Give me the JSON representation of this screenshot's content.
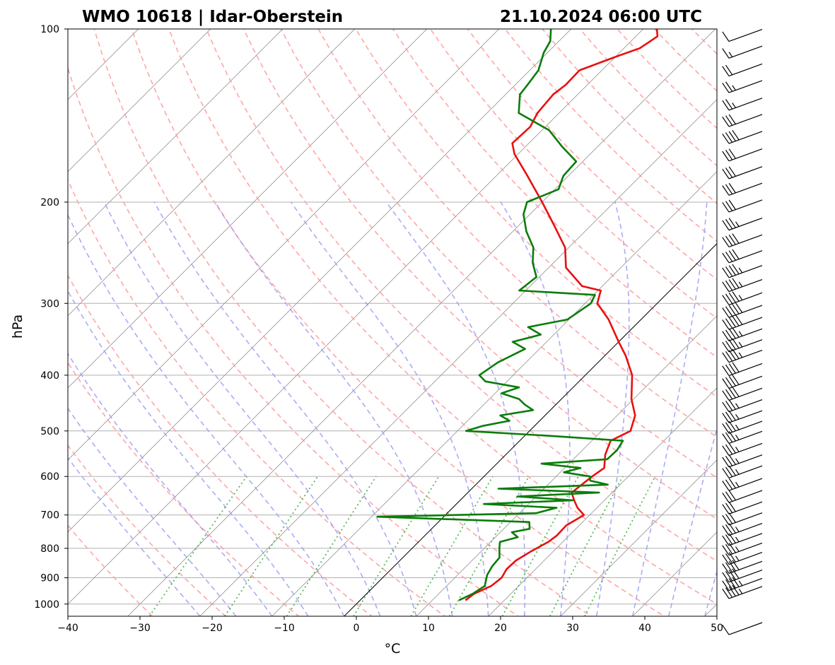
{
  "chart_data": {
    "type": "skew-t log-p sounding",
    "title_left": "WMO 10618 | Idar-Oberstein",
    "title_right": "21.10.2024 06:00 UTC",
    "xlabel": "°C",
    "ylabel": "hPa",
    "xlim": [
      -40,
      50
    ],
    "ylim_hpa": [
      1050,
      100
    ],
    "x_ticks": [
      -40,
      -30,
      -20,
      -10,
      0,
      10,
      20,
      30,
      40,
      50
    ],
    "x_tick_labels": [
      "−40",
      "−30",
      "−20",
      "−10",
      "0",
      "10",
      "20",
      "30",
      "40",
      "50"
    ],
    "y_ticks": [
      100,
      200,
      300,
      400,
      500,
      600,
      700,
      800,
      900,
      1000
    ],
    "y_tick_labels": [
      "100",
      "200",
      "300",
      "400",
      "500",
      "600",
      "700",
      "800",
      "900",
      "1000"
    ],
    "colors": {
      "temperature": "#e81010",
      "dewpoint": "#0a7d0a",
      "dry_adiabats": "#ff9c9c",
      "moist_adiabats": "#9c9cf4",
      "mixing_ratio": "#39ad39",
      "isotherms": "#8f8f8f",
      "isobars": "#b0b0b0",
      "zero_isotherm": "#000000"
    },
    "series": [
      {
        "name": "Temperature",
        "points": [
          [
            985,
            14.6
          ],
          [
            960,
            14.9
          ],
          [
            930,
            16.2
          ],
          [
            900,
            16.5
          ],
          [
            870,
            16.0
          ],
          [
            840,
            16.1
          ],
          [
            810,
            16.9
          ],
          [
            780,
            18.0
          ],
          [
            760,
            18.3
          ],
          [
            730,
            18.2
          ],
          [
            700,
            19.2
          ],
          [
            680,
            17.3
          ],
          [
            660,
            15.8
          ],
          [
            640,
            14.4
          ],
          [
            600,
            15.0
          ],
          [
            580,
            15.5
          ],
          [
            550,
            13.8
          ],
          [
            520,
            12.6
          ],
          [
            500,
            14.0
          ],
          [
            470,
            12.5
          ],
          [
            440,
            9.7
          ],
          [
            400,
            6.5
          ],
          [
            370,
            2.9
          ],
          [
            350,
            0.0
          ],
          [
            320,
            -4.5
          ],
          [
            300,
            -8.3
          ],
          [
            285,
            -9.6
          ],
          [
            280,
            -12.8
          ],
          [
            260,
            -17.6
          ],
          [
            240,
            -20.5
          ],
          [
            220,
            -25.0
          ],
          [
            200,
            -30.0
          ],
          [
            180,
            -35.7
          ],
          [
            165,
            -40.5
          ],
          [
            158,
            -42.3
          ],
          [
            148,
            -42.1
          ],
          [
            140,
            -43.0
          ],
          [
            130,
            -43.4
          ],
          [
            125,
            -43.0
          ],
          [
            118,
            -43.1
          ],
          [
            112,
            -40.1
          ],
          [
            108,
            -37.8
          ],
          [
            103,
            -37.0
          ],
          [
            100,
            -38.1
          ]
        ]
      },
      {
        "name": "Dewpoint",
        "points": [
          [
            985,
            13.7
          ],
          [
            960,
            14.7
          ],
          [
            930,
            15.3
          ],
          [
            890,
            14.1
          ],
          [
            860,
            13.6
          ],
          [
            830,
            13.4
          ],
          [
            800,
            12.1
          ],
          [
            780,
            11.3
          ],
          [
            765,
            13.1
          ],
          [
            750,
            11.6
          ],
          [
            740,
            13.6
          ],
          [
            720,
            12.6
          ],
          [
            705,
            -9.2
          ],
          [
            695,
            12.3
          ],
          [
            680,
            14.4
          ],
          [
            670,
            3.8
          ],
          [
            660,
            15.6
          ],
          [
            650,
            7.4
          ],
          [
            640,
            18.2
          ],
          [
            630,
            3.7
          ],
          [
            620,
            18.3
          ],
          [
            610,
            15.3
          ],
          [
            600,
            14.7
          ],
          [
            590,
            10.5
          ],
          [
            580,
            12.2
          ],
          [
            570,
            6.2
          ],
          [
            560,
            14.7
          ],
          [
            540,
            14.8
          ],
          [
            520,
            14.3
          ],
          [
            510,
            3.6
          ],
          [
            500,
            -8.8
          ],
          [
            490,
            -7.2
          ],
          [
            480,
            -4.2
          ],
          [
            470,
            -6.2
          ],
          [
            460,
            -2.4
          ],
          [
            450,
            -4.3
          ],
          [
            440,
            -5.9
          ],
          [
            430,
            -9.1
          ],
          [
            420,
            -7.5
          ],
          [
            410,
            -13.0
          ],
          [
            400,
            -14.7
          ],
          [
            380,
            -13.9
          ],
          [
            360,
            -12.0
          ],
          [
            350,
            -14.7
          ],
          [
            340,
            -11.8
          ],
          [
            330,
            -14.6
          ],
          [
            320,
            -10.2
          ],
          [
            300,
            -9.2
          ],
          [
            290,
            -9.8
          ],
          [
            285,
            -20.9
          ],
          [
            270,
            -20.4
          ],
          [
            255,
            -22.9
          ],
          [
            240,
            -24.9
          ],
          [
            225,
            -28.1
          ],
          [
            210,
            -30.9
          ],
          [
            200,
            -32.1
          ],
          [
            190,
            -29.5
          ],
          [
            180,
            -30.7
          ],
          [
            170,
            -30.9
          ],
          [
            160,
            -35.0
          ],
          [
            150,
            -39.0
          ],
          [
            140,
            -45.6
          ],
          [
            130,
            -48.0
          ],
          [
            125,
            -48.3
          ],
          [
            118,
            -48.8
          ],
          [
            110,
            -50.5
          ],
          [
            105,
            -51.2
          ],
          [
            100,
            -52.8
          ]
        ]
      }
    ],
    "wind_barbs": {
      "direction_deg": 250,
      "levels_hpa": [
        985,
        940,
        910,
        880,
        850,
        820,
        790,
        760,
        730,
        700,
        670,
        640,
        610,
        580,
        555,
        530,
        505,
        485,
        465,
        445,
        425,
        405,
        385,
        365,
        350,
        335,
        320,
        305,
        290,
        275,
        260,
        245,
        230,
        215,
        200,
        187,
        175,
        163,
        152,
        142,
        133,
        124,
        116,
        108,
        101
      ],
      "speeds_kt": [
        10,
        45,
        45,
        40,
        40,
        35,
        35,
        35,
        35,
        30,
        30,
        30,
        35,
        35,
        35,
        35,
        35,
        35,
        35,
        35,
        40,
        40,
        40,
        45,
        45,
        45,
        50,
        50,
        45,
        45,
        45,
        40,
        40,
        35,
        30,
        30,
        30,
        30,
        40,
        30,
        25,
        25,
        20,
        15,
        10
      ]
    }
  }
}
